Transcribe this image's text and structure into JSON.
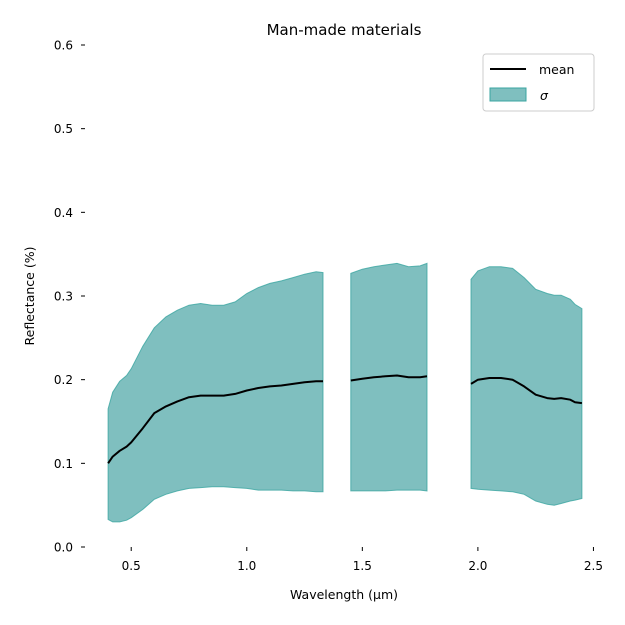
{
  "chart_data": {
    "type": "area",
    "title": "Man-made materials",
    "xlabel": "Wavelength (μm)",
    "ylabel": "Reflectance (%)",
    "xlim": [
      0.3,
      2.55
    ],
    "ylim": [
      0.0,
      0.6
    ],
    "xticks": [
      0.5,
      1.0,
      1.5,
      2.0,
      2.5
    ],
    "xtick_labels": [
      "0.5",
      "1.0",
      "1.5",
      "2.0",
      "2.5"
    ],
    "yticks": [
      0.0,
      0.1,
      0.2,
      0.3,
      0.4,
      0.5,
      0.6
    ],
    "ytick_labels": [
      "0.0",
      "0.1",
      "0.2",
      "0.3",
      "0.4",
      "0.5",
      "0.6"
    ],
    "grid": false,
    "legend_position": "top-right",
    "colors": {
      "mean": "#000000",
      "band_fill": "#7fbfbf",
      "band_edge": "#3aa5a0"
    },
    "legend": [
      {
        "key": "mean",
        "label": "mean"
      },
      {
        "key": "sigma",
        "label": "σ"
      }
    ],
    "segments": [
      {
        "x": [
          0.4,
          0.42,
          0.45,
          0.48,
          0.5,
          0.55,
          0.6,
          0.65,
          0.7,
          0.75,
          0.8,
          0.85,
          0.9,
          0.95,
          1.0,
          1.05,
          1.1,
          1.15,
          1.2,
          1.25,
          1.3,
          1.33
        ],
        "mean": [
          0.1,
          0.108,
          0.115,
          0.12,
          0.125,
          0.142,
          0.16,
          0.168,
          0.174,
          0.179,
          0.181,
          0.181,
          0.181,
          0.183,
          0.187,
          0.19,
          0.192,
          0.193,
          0.195,
          0.197,
          0.198,
          0.198
        ],
        "upper": [
          0.165,
          0.185,
          0.198,
          0.205,
          0.213,
          0.24,
          0.262,
          0.275,
          0.283,
          0.289,
          0.291,
          0.289,
          0.289,
          0.293,
          0.303,
          0.31,
          0.315,
          0.318,
          0.322,
          0.326,
          0.329,
          0.328
        ],
        "lower": [
          0.033,
          0.03,
          0.03,
          0.032,
          0.035,
          0.045,
          0.057,
          0.063,
          0.067,
          0.07,
          0.071,
          0.072,
          0.072,
          0.071,
          0.07,
          0.068,
          0.068,
          0.068,
          0.067,
          0.067,
          0.066,
          0.066
        ]
      },
      {
        "x": [
          1.45,
          1.5,
          1.55,
          1.6,
          1.65,
          1.7,
          1.75,
          1.78
        ],
        "mean": [
          0.199,
          0.201,
          0.203,
          0.204,
          0.205,
          0.203,
          0.203,
          0.204
        ],
        "upper": [
          0.327,
          0.332,
          0.335,
          0.337,
          0.339,
          0.335,
          0.336,
          0.339
        ],
        "lower": [
          0.067,
          0.067,
          0.067,
          0.067,
          0.068,
          0.068,
          0.068,
          0.067
        ]
      },
      {
        "x": [
          1.97,
          2.0,
          2.05,
          2.1,
          2.15,
          2.2,
          2.25,
          2.3,
          2.33,
          2.36,
          2.4,
          2.42,
          2.45
        ],
        "mean": [
          0.195,
          0.2,
          0.202,
          0.202,
          0.2,
          0.192,
          0.182,
          0.178,
          0.177,
          0.178,
          0.176,
          0.173,
          0.172
        ],
        "upper": [
          0.32,
          0.33,
          0.335,
          0.335,
          0.333,
          0.322,
          0.308,
          0.303,
          0.301,
          0.301,
          0.296,
          0.29,
          0.285
        ],
        "lower": [
          0.07,
          0.069,
          0.068,
          0.067,
          0.066,
          0.063,
          0.055,
          0.051,
          0.05,
          0.052,
          0.055,
          0.056,
          0.058
        ]
      }
    ]
  }
}
